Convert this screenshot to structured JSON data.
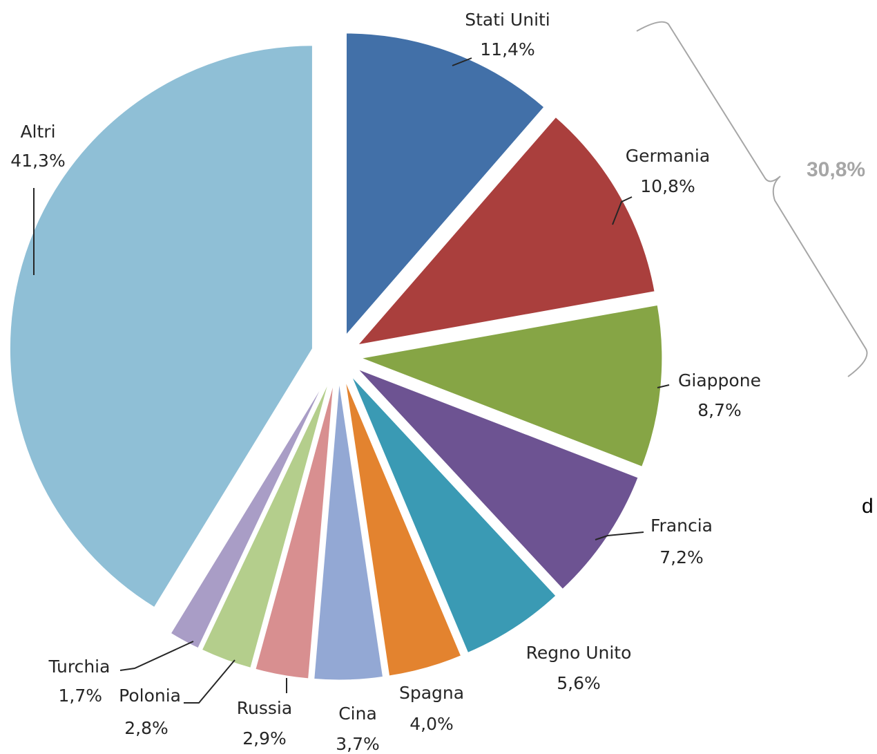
{
  "chart_data": {
    "type": "pie",
    "exploded": true,
    "start_angle_deg": 0,
    "direction": "clockwise",
    "slices": [
      {
        "label": "Stati Uniti",
        "value": 11.4,
        "value_label": "11,4%",
        "color": "#4270A8"
      },
      {
        "label": "Germania",
        "value": 10.8,
        "value_label": "10,8%",
        "color": "#AA3F3D"
      },
      {
        "label": "Giappone",
        "value": 8.7,
        "value_label": "8,7%",
        "color": "#86A545"
      },
      {
        "label": "Francia",
        "value": 7.2,
        "value_label": "7,2%",
        "color": "#6D5392"
      },
      {
        "label": "Regno Unito",
        "value": 5.6,
        "value_label": "5,6%",
        "color": "#3A9AB4"
      },
      {
        "label": "Spagna",
        "value": 4.0,
        "value_label": "4,0%",
        "color": "#E3832F"
      },
      {
        "label": "Cina",
        "value": 3.7,
        "value_label": "3,7%",
        "color": "#93A8D4"
      },
      {
        "label": "Russia",
        "value": 2.9,
        "value_label": "2,9%",
        "color": "#D88F90"
      },
      {
        "label": "Polonia",
        "value": 2.8,
        "value_label": "2,8%",
        "color": "#B4CE8C"
      },
      {
        "label": "Turchia",
        "value": 1.7,
        "value_label": "1,7%",
        "color": "#A99DC6"
      },
      {
        "label": "Altri",
        "value": 41.3,
        "value_label": "41,3%",
        "color": "#8FBFD6"
      }
    ],
    "bracket": {
      "label": "30,8%",
      "color": "#A6A6A6"
    }
  },
  "stray_text": "d"
}
